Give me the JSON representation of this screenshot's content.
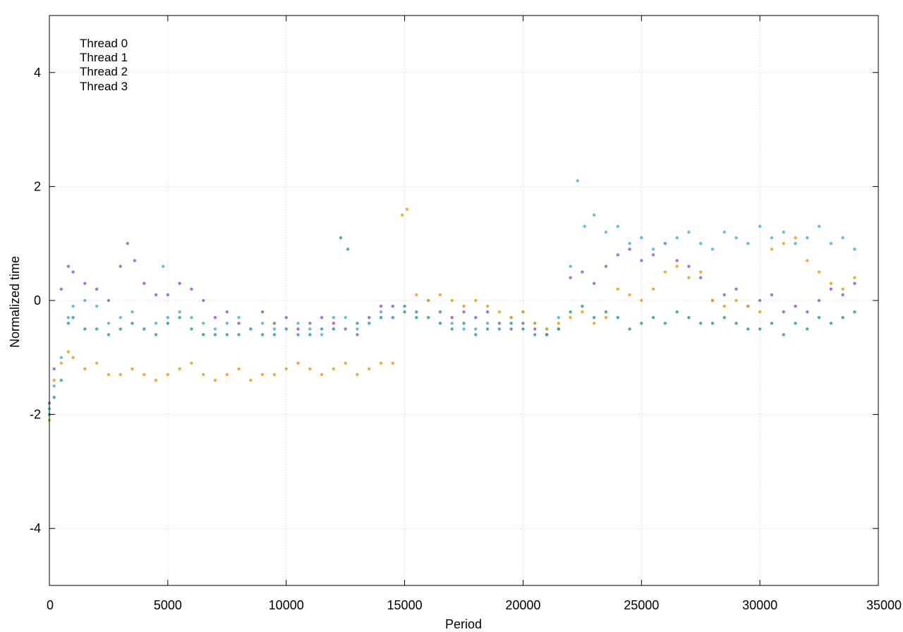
{
  "chart_data": {
    "type": "scatter",
    "title": "",
    "xlabel": "Period",
    "ylabel": "Normalized time",
    "xlim": [
      0,
      35000
    ],
    "ylim": [
      -5,
      5
    ],
    "xticks": [
      0,
      5000,
      10000,
      15000,
      20000,
      25000,
      30000,
      35000
    ],
    "xtick_labels": [
      "0",
      "5000",
      "10000",
      "15000",
      "20000",
      "25000",
      "30000",
      "35000"
    ],
    "yticks": [
      -4,
      -2,
      0,
      2,
      4
    ],
    "ytick_labels": [
      "-4",
      "-2",
      "0",
      "2",
      "4"
    ],
    "grid": true,
    "legend_position": "top-left",
    "series": [
      {
        "name": "Thread 0",
        "color": "#9b59d0",
        "x": [
          0,
          200,
          500,
          800,
          1000,
          1500,
          2000,
          2500,
          3000,
          3300,
          3600,
          4000,
          4500,
          5000,
          5500,
          6000,
          6500,
          7000,
          7500,
          8000,
          8500,
          9000,
          9500,
          10000,
          10500,
          11000,
          11500,
          12000,
          12500,
          13000,
          13500,
          14000,
          14500,
          15000,
          15500,
          16000,
          16500,
          17000,
          17500,
          18000,
          18500,
          19000,
          19500,
          20000,
          20500,
          21000,
          21500,
          22000,
          22500,
          23000,
          23500,
          24000,
          24500,
          25000,
          25500,
          26000,
          26500,
          27000,
          27500,
          28000,
          28500,
          29000,
          29500,
          30000,
          30500,
          31000,
          31500,
          32000,
          32500,
          33000,
          33500,
          34000
        ],
        "y": [
          -1.8,
          -1.2,
          0.2,
          0.6,
          0.5,
          0.3,
          0.2,
          0.0,
          0.6,
          1.0,
          0.7,
          0.3,
          0.1,
          0.1,
          0.3,
          0.2,
          0.0,
          -0.3,
          -0.2,
          -0.4,
          -0.5,
          -0.2,
          -0.4,
          -0.3,
          -0.5,
          -0.4,
          -0.3,
          -0.4,
          -0.5,
          -0.6,
          -0.3,
          -0.1,
          -0.1,
          -0.1,
          -0.2,
          0.0,
          -0.2,
          -0.3,
          -0.2,
          -0.3,
          -0.2,
          -0.4,
          -0.5,
          -0.4,
          -0.5,
          -0.6,
          -0.5,
          0.4,
          0.5,
          0.3,
          0.6,
          0.8,
          0.9,
          0.7,
          0.8,
          1.0,
          0.7,
          0.6,
          0.4,
          0.0,
          0.1,
          0.2,
          -0.1,
          0.0,
          0.1,
          -0.2,
          -0.1,
          -0.2,
          0.0,
          0.2,
          0.1,
          0.3
        ]
      },
      {
        "name": "Thread 1",
        "color": "#2aa198",
        "x": [
          0,
          200,
          500,
          800,
          1000,
          1500,
          2000,
          2500,
          3000,
          3500,
          4000,
          4500,
          5000,
          5500,
          6000,
          6500,
          7000,
          7500,
          8000,
          8500,
          9000,
          9500,
          10000,
          10500,
          11000,
          11500,
          12000,
          12300,
          12600,
          13000,
          13500,
          14000,
          14500,
          15000,
          15500,
          16000,
          16500,
          17000,
          17500,
          18000,
          18500,
          19000,
          19500,
          20000,
          20500,
          21000,
          21500,
          22000,
          22500,
          23000,
          23500,
          24000,
          24500,
          25000,
          25500,
          26000,
          26500,
          27000,
          27500,
          28000,
          28500,
          29000,
          29500,
          30000,
          30500,
          31000,
          31500,
          32000,
          32500,
          33000,
          33500,
          34000
        ],
        "y": [
          -2.0,
          -1.7,
          -1.4,
          -0.4,
          -0.3,
          -0.5,
          -0.5,
          -0.6,
          -0.5,
          -0.4,
          -0.5,
          -0.6,
          -0.4,
          -0.3,
          -0.5,
          -0.6,
          -0.6,
          -0.6,
          -0.6,
          -0.5,
          -0.6,
          -0.6,
          -0.5,
          -0.6,
          -0.6,
          -0.5,
          -0.5,
          1.1,
          0.9,
          -0.4,
          -0.4,
          -0.3,
          -0.3,
          -0.2,
          -0.3,
          -0.3,
          -0.4,
          -0.5,
          -0.4,
          -0.6,
          -0.5,
          -0.5,
          -0.4,
          -0.5,
          -0.6,
          -0.6,
          -0.5,
          -0.2,
          -0.1,
          -0.3,
          -0.2,
          -0.3,
          -0.5,
          -0.4,
          -0.3,
          -0.4,
          -0.2,
          -0.3,
          -0.4,
          -0.4,
          -0.3,
          -0.4,
          -0.5,
          -0.5,
          -0.4,
          -0.6,
          -0.4,
          -0.5,
          -0.3,
          -0.4,
          -0.3,
          -0.2
        ]
      },
      {
        "name": "Thread 2",
        "color": "#4fb0d6",
        "x": [
          0,
          200,
          500,
          800,
          1000,
          1500,
          2000,
          2500,
          3000,
          3500,
          4000,
          4500,
          4800,
          5000,
          5500,
          6000,
          6500,
          7000,
          7500,
          8000,
          8500,
          9000,
          9500,
          10000,
          10500,
          11000,
          11500,
          12000,
          12500,
          13000,
          13500,
          14000,
          14500,
          15000,
          15500,
          16000,
          16500,
          17000,
          17500,
          18000,
          18500,
          19000,
          19500,
          20000,
          20500,
          21000,
          21500,
          22000,
          22300,
          22600,
          23000,
          23500,
          24000,
          24500,
          25000,
          25500,
          26000,
          26500,
          27000,
          27500,
          28000,
          28500,
          29000,
          29500,
          30000,
          30500,
          31000,
          31500,
          32000,
          32500,
          33000,
          33500,
          34000
        ],
        "y": [
          -1.9,
          -1.5,
          -1.0,
          -0.3,
          -0.1,
          0.0,
          -0.1,
          -0.4,
          -0.3,
          -0.2,
          -0.5,
          -0.4,
          0.6,
          -0.3,
          -0.2,
          -0.3,
          -0.4,
          -0.5,
          -0.4,
          -0.3,
          -0.5,
          -0.4,
          -0.5,
          -0.5,
          -0.4,
          -0.5,
          -0.6,
          -0.3,
          -0.3,
          -0.5,
          -0.4,
          -0.2,
          -0.3,
          -0.1,
          -0.2,
          -0.3,
          -0.2,
          -0.4,
          -0.5,
          -0.5,
          -0.4,
          -0.5,
          -0.3,
          -0.2,
          -0.4,
          -0.5,
          -0.3,
          0.6,
          2.1,
          1.3,
          1.5,
          1.2,
          1.3,
          1.0,
          1.1,
          0.9,
          1.0,
          1.1,
          1.2,
          1.0,
          0.9,
          1.2,
          1.1,
          1.0,
          1.3,
          1.1,
          1.2,
          1.0,
          1.1,
          1.3,
          1.0,
          1.1,
          0.9
        ]
      },
      {
        "name": "Thread 3",
        "color": "#e5a21c",
        "x": [
          0,
          200,
          500,
          800,
          1000,
          1500,
          2000,
          2500,
          3000,
          3500,
          4000,
          4500,
          5000,
          5500,
          6000,
          6500,
          7000,
          7500,
          8000,
          8500,
          9000,
          9500,
          10000,
          10500,
          11000,
          11500,
          12000,
          12500,
          13000,
          13500,
          14000,
          14500,
          14900,
          15100,
          15500,
          16000,
          16500,
          17000,
          17500,
          18000,
          18500,
          19000,
          19500,
          20000,
          20500,
          21000,
          21500,
          22000,
          22500,
          23000,
          23500,
          24000,
          24500,
          25000,
          25500,
          26000,
          26500,
          27000,
          27500,
          28000,
          28500,
          29000,
          29500,
          30000,
          30500,
          31000,
          31500,
          32000,
          32500,
          33000,
          33500,
          34000
        ],
        "y": [
          -2.1,
          -1.4,
          -1.1,
          -0.9,
          -1.0,
          -1.2,
          -1.1,
          -1.3,
          -1.3,
          -1.2,
          -1.3,
          -1.4,
          -1.3,
          -1.2,
          -1.1,
          -1.3,
          -1.4,
          -1.3,
          -1.2,
          -1.4,
          -1.3,
          -1.3,
          -1.2,
          -1.1,
          -1.2,
          -1.3,
          -1.2,
          -1.1,
          -1.3,
          -1.2,
          -1.1,
          -1.1,
          1.5,
          1.6,
          0.1,
          0.0,
          0.1,
          0.0,
          -0.1,
          0.0,
          -0.1,
          -0.2,
          -0.3,
          -0.2,
          -0.4,
          -0.5,
          -0.4,
          -0.3,
          -0.2,
          -0.4,
          -0.3,
          0.2,
          0.1,
          0.0,
          0.2,
          0.5,
          0.6,
          0.4,
          0.5,
          0.0,
          -0.1,
          0.0,
          -0.1,
          -0.2,
          0.9,
          1.0,
          1.1,
          0.7,
          0.5,
          0.3,
          0.2,
          0.4
        ]
      }
    ]
  }
}
